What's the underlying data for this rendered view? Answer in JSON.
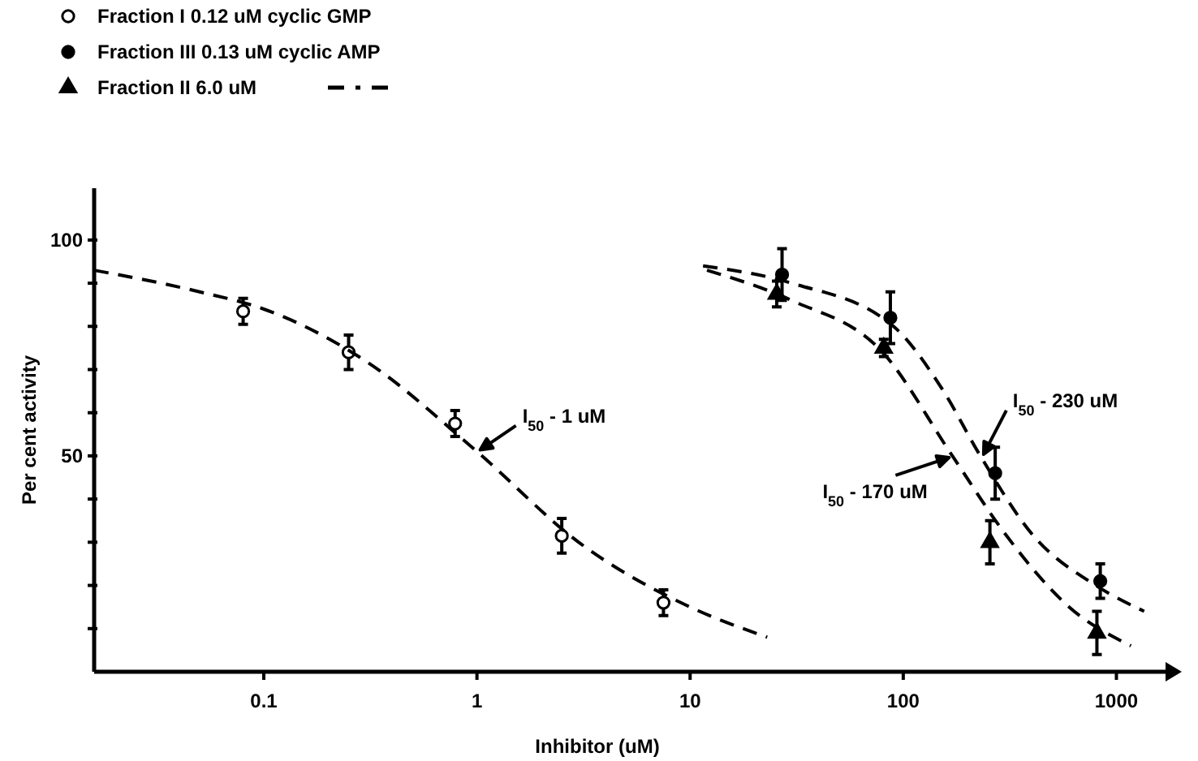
{
  "chart_data": {
    "type": "scatter",
    "xlabel": "Inhibitor (uM)",
    "ylabel": "Per cent activity",
    "log": "x",
    "grid": false,
    "legend": "top left",
    "xlim": [
      0.016,
      1700
    ],
    "xticks": [
      {
        "value": 0.1,
        "label": "0.1"
      },
      1,
      10,
      100,
      1000
    ],
    "ylim": [
      0,
      112
    ],
    "yticks": [
      {
        "value": 10,
        "label": null
      },
      {
        "value": 20,
        "label": null
      },
      {
        "value": 30,
        "label": null
      },
      {
        "value": 40,
        "label": null
      },
      50,
      {
        "value": 60,
        "label": null
      },
      {
        "value": 70,
        "label": null
      },
      {
        "value": 80,
        "label": null
      },
      {
        "value": 90,
        "label": null
      },
      100
    ],
    "series": [
      {
        "name": "Fraction I 0.12 uM cyclic GMP",
        "marker": "circle",
        "color": "#ffffff",
        "x": [
          0.08,
          0.25,
          0.79,
          2.5,
          7.5
        ],
        "values": [
          83.5,
          74,
          57.5,
          31.5,
          16
        ],
        "errors": [
          3,
          4,
          3,
          4,
          3
        ]
      },
      {
        "name": "Fraction III 0.13 uM cyclic AMP",
        "marker": "circle",
        "color": "#000000",
        "x": [
          27,
          87,
          270,
          840
        ],
        "values": [
          92,
          82,
          46,
          21
        ],
        "errors": [
          6,
          6,
          6,
          4
        ]
      },
      {
        "name": "Fraction II 6.0 uM",
        "marker": "triangle",
        "color": "#000000",
        "x": [
          25.5,
          81,
          255,
          810
        ],
        "values": [
          87.5,
          75,
          30,
          9
        ],
        "errors": [
          3,
          2,
          5,
          5
        ]
      },
      {
        "type": "line",
        "marker": "none",
        "line_style": "dashed",
        "color": "#000000",
        "x": [
          0.016,
          0.05,
          0.1,
          0.3,
          1,
          3,
          10,
          23
        ],
        "values": [
          93,
          88,
          84,
          72,
          51,
          30,
          15,
          8
        ]
      },
      {
        "type": "line",
        "marker": "none",
        "line_style": "dashed",
        "color": "#000000",
        "x": [
          11.5,
          30,
          90,
          150,
          230,
          400,
          800,
          1350
        ],
        "values": [
          94,
          90,
          80,
          66,
          50,
          32,
          20,
          14
        ]
      },
      {
        "type": "line",
        "marker": "none",
        "line_style": "dashed",
        "color": "#000000",
        "x": [
          12,
          30,
          80,
          170,
          300,
          600,
          1170
        ],
        "values": [
          93,
          86,
          74,
          50,
          32,
          15,
          6
        ]
      }
    ],
    "annotations": [
      {
        "text": "I$_{50}$ - 1 uM",
        "x": 1,
        "y": 51
      },
      {
        "text": "I$_{50}$ - 230 uM",
        "x": 230,
        "y": 50
      },
      {
        "text": "I$_{50}$ - 170 uM",
        "x": 170,
        "y": 50
      }
    ]
  }
}
